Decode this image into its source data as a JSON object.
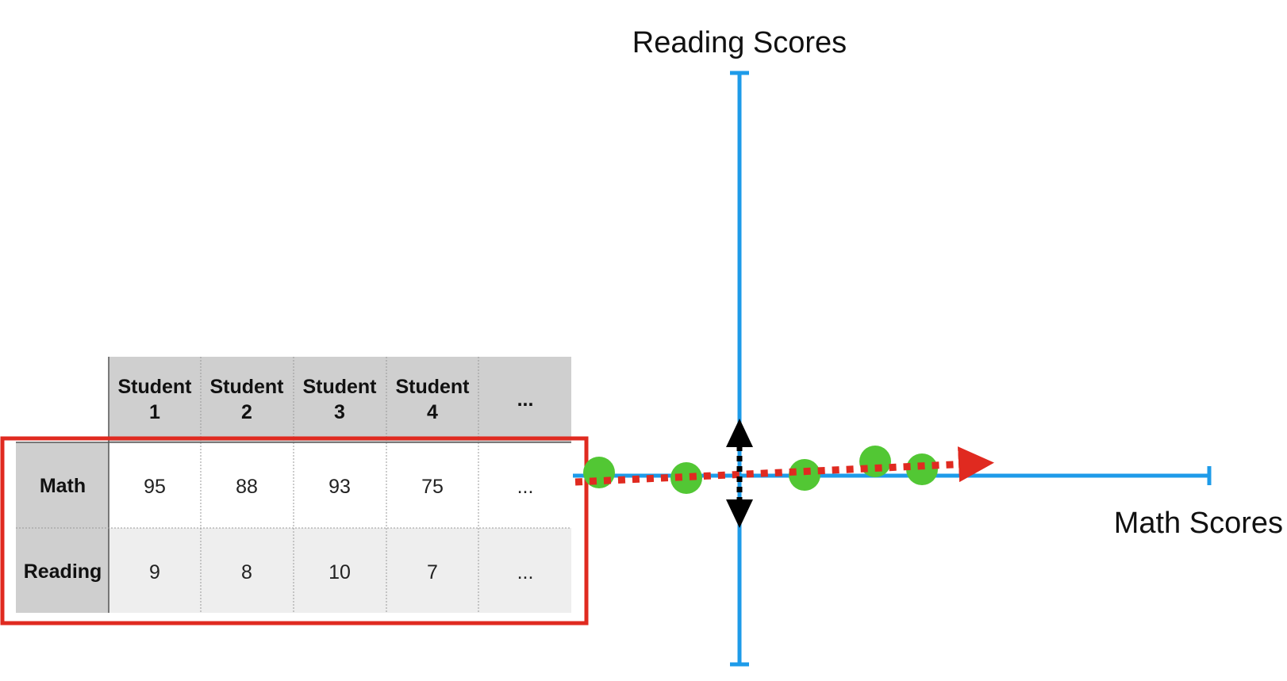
{
  "axes": {
    "vertical_label": "Reading Scores",
    "horizontal_label": "Math Scores",
    "axis_color": "#1E9BE9"
  },
  "table": {
    "columns": [
      {
        "line1": "Student",
        "line2": "1"
      },
      {
        "line1": "Student",
        "line2": "2"
      },
      {
        "line1": "Student",
        "line2": "3"
      },
      {
        "line1": "Student",
        "line2": "4"
      },
      {
        "line1": "...",
        "line2": ""
      }
    ],
    "rows": [
      {
        "label": "Math",
        "values": [
          "95",
          "88",
          "93",
          "75",
          "..."
        ]
      },
      {
        "label": "Reading",
        "values": [
          "9",
          "8",
          "10",
          "7",
          "..."
        ]
      }
    ],
    "header_bg": "#cfcfcf",
    "highlight_color": "#E02A20"
  },
  "colors": {
    "points": "#52C734",
    "pc1_arrow": "#E02A20",
    "pc2_arrow": "#000000"
  }
}
